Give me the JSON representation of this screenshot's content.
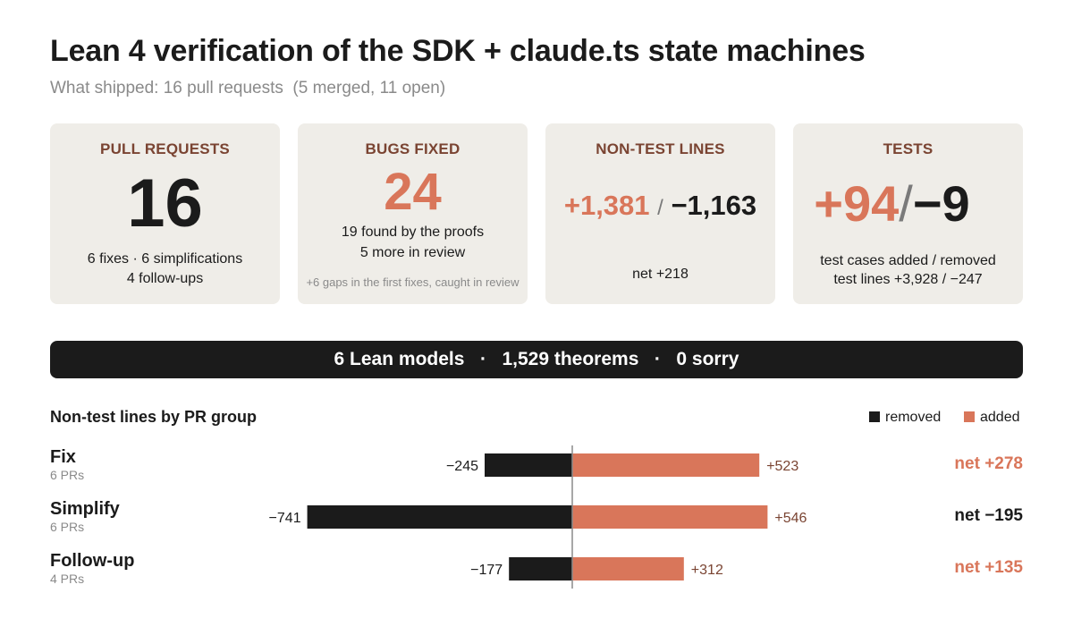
{
  "title": "Lean 4 verification of the SDK + claude.ts state machines",
  "subtitle": "What shipped: 16 pull requests  (5 merged, 11 open)",
  "cards": {
    "pull_requests": {
      "label": "PULL REQUESTS",
      "value": "16",
      "line1": "6 fixes · 6 simplifications",
      "line2": "4 follow-ups"
    },
    "bugs_fixed": {
      "label": "BUGS FIXED",
      "value": "24",
      "line1": "19 found by the proofs",
      "line2": "5 more in review",
      "note": "+6 gaps in the first fixes, caught in review"
    },
    "non_test_lines": {
      "label": "NON-TEST LINES",
      "added": "+1,381",
      "separator": "/",
      "removed": "−1,163",
      "net": "net +218"
    },
    "tests": {
      "label": "TESTS",
      "added": "+94",
      "separator": "/",
      "removed": "−9",
      "line1": "test cases added / removed",
      "line2": "test lines +3,928 / −247"
    }
  },
  "banner": {
    "models": "6 Lean models",
    "theorems": "1,529 theorems",
    "sorry": "0 sorry",
    "separator": "·"
  },
  "colors": {
    "added": "#d9765a",
    "removed": "#1b1b1b",
    "card_bg": "#efede8",
    "label": "#7a4432",
    "muted": "#8a8a8a"
  },
  "chart_data": {
    "type": "bar",
    "orientation": "horizontal-diverging",
    "title": "Non-test lines by PR group",
    "legend": [
      "removed",
      "added"
    ],
    "legend_position": "top-right",
    "categories": [
      "Fix",
      "Simplify",
      "Follow-up"
    ],
    "category_subtitles": [
      "6 PRs",
      "6 PRs",
      "4 PRs"
    ],
    "series": [
      {
        "name": "removed",
        "values": [
          -245,
          -741,
          -177
        ],
        "labels": [
          "−245",
          "−741",
          "−177"
        ]
      },
      {
        "name": "added",
        "values": [
          523,
          546,
          312
        ],
        "labels": [
          "+523",
          "+546",
          "+312"
        ]
      }
    ],
    "net": [
      278,
      -195,
      135
    ],
    "net_labels": [
      "net +278",
      "net −195",
      "net +135"
    ],
    "xlim": [
      -800,
      600
    ]
  }
}
